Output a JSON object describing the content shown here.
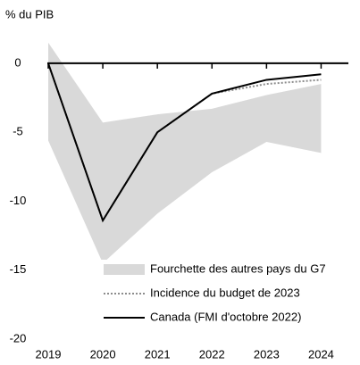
{
  "chart_data": {
    "type": "line",
    "y_label": "% du PIB",
    "x": [
      2019,
      2020,
      2021,
      2022,
      2023,
      2024
    ],
    "xlim": [
      2019,
      2024.5
    ],
    "xticks": [
      2019,
      2020,
      2021,
      2022,
      2023,
      2024
    ],
    "ylim": [
      -20,
      2
    ],
    "yticks": [
      0,
      -5,
      -10,
      -15,
      -20
    ],
    "grid": false,
    "legend": "lower right",
    "series": [
      {
        "name": "Fourchette des autres pays du G7",
        "color": "#d9d9d9",
        "style": "band",
        "upper": [
          1.5,
          -4.3,
          -3.7,
          -3.3,
          -2.3,
          -1.5
        ],
        "lower": [
          -5.6,
          -14.5,
          -10.9,
          -7.9,
          -5.7,
          -6.5
        ]
      },
      {
        "name": "Incidence du budget de 2023",
        "color": "#8c8c8c",
        "style": "dotted",
        "values": [
          0,
          -11.4,
          -5,
          -2.2,
          -1.5,
          -1.2
        ]
      },
      {
        "name": "Canada (FMI d'octobre 2022)",
        "color": "#000000",
        "style": "solid",
        "values": [
          0,
          -11.4,
          -5,
          -2.2,
          -1.2,
          -0.8
        ]
      }
    ]
  }
}
